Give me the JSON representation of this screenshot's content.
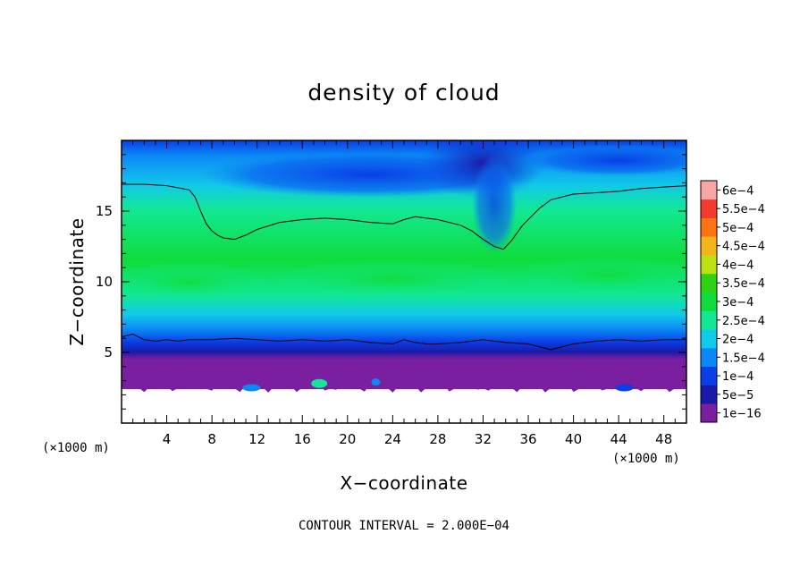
{
  "chart_data": {
    "type": "heatmap",
    "title": "density of cloud",
    "xlabel": "X−coordinate",
    "ylabel": "Z−coordinate",
    "x_unit": "(×1000 m)",
    "y_unit": "(×1000 m)",
    "xlim": [
      0,
      50
    ],
    "ylim": [
      0,
      20
    ],
    "x_ticks": [
      4,
      8,
      12,
      16,
      20,
      24,
      28,
      32,
      36,
      40,
      44,
      48
    ],
    "y_ticks": [
      5,
      10,
      15
    ],
    "colorbar": {
      "labels": [
        "1e−16",
        "5e−5",
        "1e−4",
        "1.5e−4",
        "2e−4",
        "2.5e−4",
        "3e−4",
        "3.5e−4",
        "4e−4",
        "4.5e−4",
        "5e−4",
        "5.5e−4",
        "6e−4"
      ],
      "colors": [
        "#7a1fa0",
        "#1a1aa8",
        "#0a3ee6",
        "#0b88f5",
        "#11c9e9",
        "#12e893",
        "#0fdc3a",
        "#2fd212",
        "#bde012",
        "#f3b51a",
        "#fb7414",
        "#f33a2d",
        "#f7a6a6"
      ]
    },
    "contour_levels": [
      0.0002
    ],
    "annotation": "CONTOUR INTERVAL = 2.000E−04",
    "contour_lines": [
      {
        "level": 0.0002,
        "x": [
          0,
          2,
          4,
          6,
          6.5,
          7,
          7.5,
          8,
          8.5,
          9,
          10,
          11,
          12,
          14,
          16,
          18,
          20,
          22,
          24,
          25,
          26,
          28,
          30,
          31,
          32,
          33,
          33.8,
          34.5,
          35.5,
          37,
          38,
          40,
          42,
          44,
          46,
          48,
          50
        ],
        "y": [
          16.9,
          16.9,
          16.8,
          16.5,
          16.0,
          15.0,
          14.1,
          13.6,
          13.3,
          13.1,
          13.0,
          13.3,
          13.7,
          14.2,
          14.4,
          14.5,
          14.4,
          14.2,
          14.1,
          14.4,
          14.6,
          14.4,
          14.0,
          13.6,
          13.0,
          12.5,
          12.3,
          12.9,
          14.0,
          15.2,
          15.8,
          16.2,
          16.3,
          16.4,
          16.6,
          16.7,
          16.8
        ]
      },
      {
        "level": 0.0002,
        "x": [
          0,
          1,
          2,
          3,
          4,
          5,
          6,
          8,
          10,
          12,
          14,
          16,
          18,
          20,
          22,
          24,
          25,
          26,
          27,
          28,
          30,
          32,
          33,
          34,
          36,
          37,
          38,
          39,
          40,
          42,
          44,
          46,
          48,
          50
        ],
        "y": [
          6.1,
          6.3,
          5.9,
          5.8,
          5.9,
          5.8,
          5.9,
          5.9,
          6.0,
          5.9,
          5.8,
          5.9,
          5.8,
          5.9,
          5.7,
          5.6,
          5.9,
          5.7,
          5.6,
          5.6,
          5.7,
          5.9,
          5.8,
          5.7,
          5.6,
          5.4,
          5.2,
          5.4,
          5.6,
          5.8,
          5.9,
          5.8,
          5.9,
          5.9
        ]
      }
    ]
  }
}
